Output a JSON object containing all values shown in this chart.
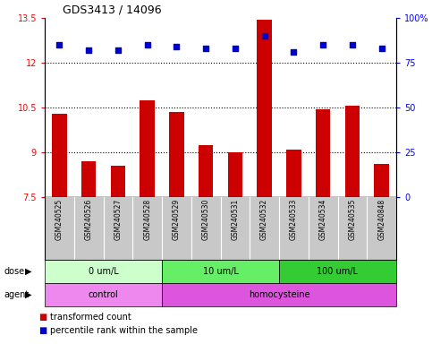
{
  "title": "GDS3413 / 14096",
  "samples": [
    "GSM240525",
    "GSM240526",
    "GSM240527",
    "GSM240528",
    "GSM240529",
    "GSM240530",
    "GSM240531",
    "GSM240532",
    "GSM240533",
    "GSM240534",
    "GSM240535",
    "GSM240848"
  ],
  "transformed_count": [
    10.3,
    8.7,
    8.55,
    10.75,
    10.35,
    9.25,
    9.0,
    13.45,
    9.1,
    10.45,
    10.55,
    8.6
  ],
  "percentile_rank": [
    85,
    82,
    82,
    85,
    84,
    83,
    83,
    90,
    81,
    85,
    85,
    83
  ],
  "ylim_left": [
    7.5,
    13.5
  ],
  "ylim_right": [
    0,
    100
  ],
  "yticks_left": [
    7.5,
    9.0,
    10.5,
    12.0,
    13.5
  ],
  "ytick_labels_left": [
    "7.5",
    "9",
    "10.5",
    "12",
    "13.5"
  ],
  "yticks_right": [
    0,
    25,
    50,
    75,
    100
  ],
  "ytick_labels_right": [
    "0",
    "25",
    "50",
    "75",
    "100%"
  ],
  "hlines": [
    9.0,
    10.5,
    12.0
  ],
  "bar_color": "#cc0000",
  "dot_color": "#0000cc",
  "dose_groups": [
    {
      "label": "0 um/L",
      "start": 0,
      "end": 4,
      "color": "#ccffcc"
    },
    {
      "label": "10 um/L",
      "start": 4,
      "end": 8,
      "color": "#66ee66"
    },
    {
      "label": "100 um/L",
      "start": 8,
      "end": 12,
      "color": "#33cc33"
    }
  ],
  "agent_groups": [
    {
      "label": "control",
      "start": 0,
      "end": 4,
      "color": "#ee88ee"
    },
    {
      "label": "homocysteine",
      "start": 4,
      "end": 12,
      "color": "#dd55dd"
    }
  ],
  "dose_label": "dose",
  "agent_label": "agent",
  "legend_items": [
    {
      "label": "transformed count",
      "color": "#cc0000"
    },
    {
      "label": "percentile rank within the sample",
      "color": "#0000cc"
    }
  ],
  "sample_bg_color": "#c8c8c8",
  "sample_div_color": "#ffffff"
}
